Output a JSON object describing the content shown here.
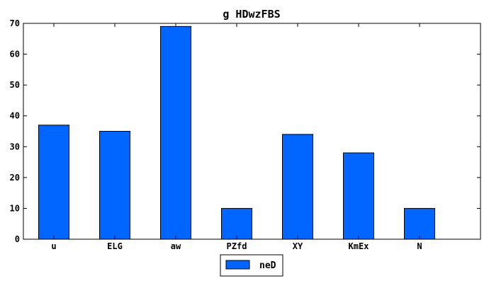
{
  "chart_data": {
    "type": "bar",
    "title": "g  HDwzFBS",
    "categories": [
      "u",
      "ELG",
      "aw",
      "PZfd",
      "XY",
      "KmEx",
      "N"
    ],
    "series": [
      {
        "name": "neD",
        "values": [
          37,
          35,
          69,
          10,
          34,
          28,
          10
        ],
        "color": "#0066ff"
      }
    ],
    "ylim": [
      0,
      70
    ],
    "yticks": [
      0,
      10,
      20,
      30,
      40,
      50,
      60,
      70
    ],
    "xlabel": "",
    "ylabel": "",
    "grid": false,
    "legend_position": "bottom-center"
  }
}
